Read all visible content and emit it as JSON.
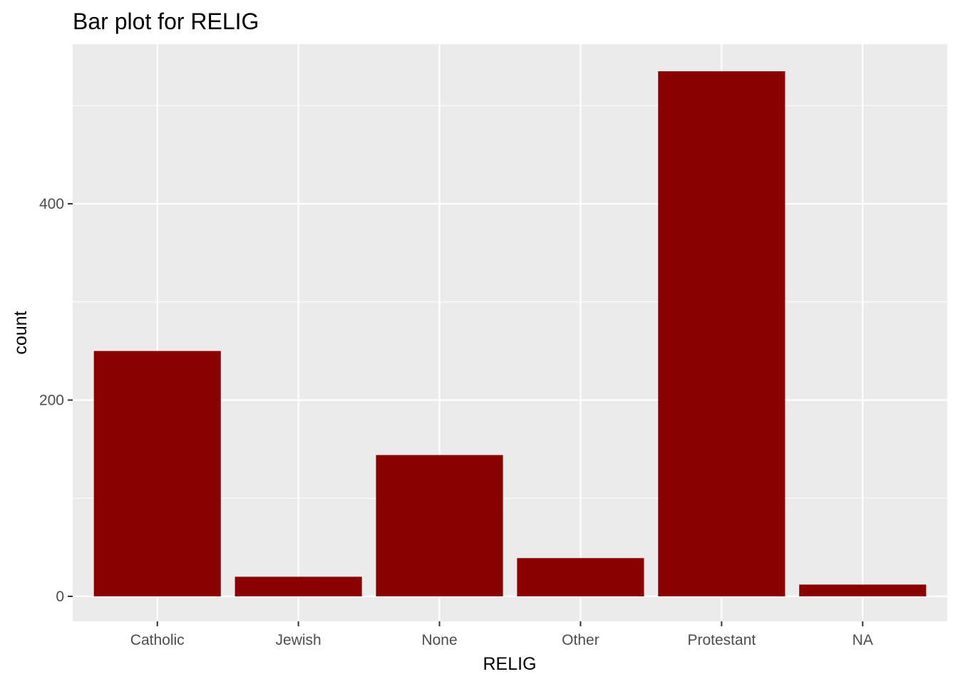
{
  "chart_data": {
    "type": "bar",
    "title": "Bar plot for RELIG",
    "xlabel": "RELIG",
    "ylabel": "count",
    "categories": [
      "Catholic",
      "Jewish",
      "None",
      "Other",
      "Protestant",
      "NA"
    ],
    "values": [
      250,
      20,
      144,
      39,
      535,
      12
    ],
    "ylim": [
      0,
      560
    ],
    "yticks": [
      0,
      200,
      400
    ],
    "grid": true,
    "panel_background": "#ebebeb",
    "bar_color": "#8b0000"
  }
}
